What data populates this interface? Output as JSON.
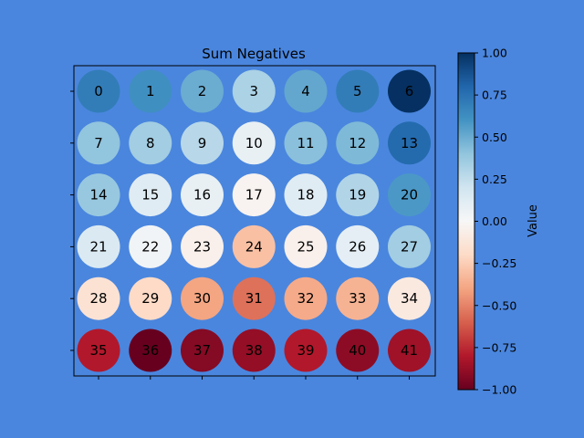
{
  "background_color": "#4a86de",
  "chart_data": {
    "type": "heatmap",
    "title": "Sum Negatives",
    "rows": 6,
    "cols": 7,
    "colormap": "RdBu",
    "colorbar": {
      "label": "Value",
      "range": [
        -1.0,
        1.0
      ],
      "ticks": [
        "1.00",
        "0.75",
        "0.50",
        "0.25",
        "0.00",
        "−0.25",
        "−0.50",
        "−0.75",
        "−1.00"
      ],
      "tick_values": [
        1.0,
        0.75,
        0.5,
        0.25,
        0.0,
        -0.25,
        -0.5,
        -0.75,
        -1.0
      ]
    },
    "cells": [
      {
        "label": "0",
        "value": 0.7
      },
      {
        "label": "1",
        "value": 0.62
      },
      {
        "label": "2",
        "value": 0.5
      },
      {
        "label": "3",
        "value": 0.32
      },
      {
        "label": "4",
        "value": 0.52
      },
      {
        "label": "5",
        "value": 0.7
      },
      {
        "label": "6",
        "value": 1.0
      },
      {
        "label": "7",
        "value": 0.4
      },
      {
        "label": "8",
        "value": 0.35
      },
      {
        "label": "9",
        "value": 0.28
      },
      {
        "label": "10",
        "value": 0.08
      },
      {
        "label": "11",
        "value": 0.42
      },
      {
        "label": "12",
        "value": 0.45
      },
      {
        "label": "13",
        "value": 0.78
      },
      {
        "label": "14",
        "value": 0.38
      },
      {
        "label": "15",
        "value": 0.12
      },
      {
        "label": "16",
        "value": 0.08
      },
      {
        "label": "17",
        "value": -0.03
      },
      {
        "label": "18",
        "value": 0.12
      },
      {
        "label": "19",
        "value": 0.3
      },
      {
        "label": "20",
        "value": 0.58
      },
      {
        "label": "21",
        "value": 0.15
      },
      {
        "label": "22",
        "value": 0.03
      },
      {
        "label": "23",
        "value": -0.05
      },
      {
        "label": "24",
        "value": -0.3
      },
      {
        "label": "25",
        "value": -0.05
      },
      {
        "label": "26",
        "value": 0.1
      },
      {
        "label": "27",
        "value": 0.35
      },
      {
        "label": "28",
        "value": -0.15
      },
      {
        "label": "29",
        "value": -0.2
      },
      {
        "label": "30",
        "value": -0.4
      },
      {
        "label": "31",
        "value": -0.55
      },
      {
        "label": "32",
        "value": -0.38
      },
      {
        "label": "33",
        "value": -0.35
      },
      {
        "label": "34",
        "value": -0.1
      },
      {
        "label": "35",
        "value": -0.8
      },
      {
        "label": "36",
        "value": -1.0
      },
      {
        "label": "37",
        "value": -0.92
      },
      {
        "label": "38",
        "value": -0.88
      },
      {
        "label": "39",
        "value": -0.8
      },
      {
        "label": "40",
        "value": -0.9
      },
      {
        "label": "41",
        "value": -0.85
      }
    ]
  }
}
